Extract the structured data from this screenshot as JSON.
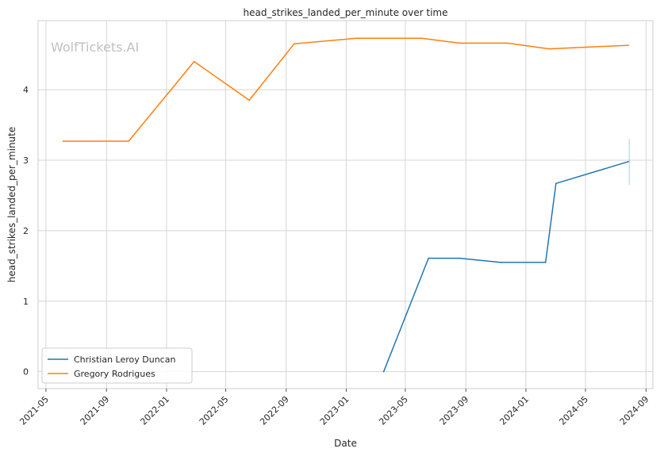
{
  "watermark": "WolfTickets.AI",
  "colors": {
    "Christian Leroy Duncan": "#1f77b4",
    "Gregory Rodrigues": "#ff7f0e",
    "grid": "#d5d5d5",
    "spine": "#cccccc"
  },
  "chart_data": {
    "type": "line",
    "title": "head_strikes_landed_per_minute over time",
    "xlabel": "Date",
    "ylabel": "head_strikes_landed_per_minute",
    "xlim": [
      "2021-04-15",
      "2024-09-15"
    ],
    "ylim": [
      -0.24,
      4.98
    ],
    "x_ticks": [
      "2021-05",
      "2021-09",
      "2022-01",
      "2022-05",
      "2022-09",
      "2023-01",
      "2023-05",
      "2023-09",
      "2024-01",
      "2024-05",
      "2024-09"
    ],
    "y_ticks": [
      0,
      1,
      2,
      3,
      4
    ],
    "grid": true,
    "legend_position": "lower-left",
    "series": [
      {
        "name": "Christian Leroy Duncan",
        "points": [
          {
            "x": "2023-03-18",
            "y": 0.0
          },
          {
            "x": "2023-06-17",
            "y": 1.61
          },
          {
            "x": "2023-08-19",
            "y": 1.61
          },
          {
            "x": "2023-11-11",
            "y": 1.55
          },
          {
            "x": "2024-02-10",
            "y": 1.55
          },
          {
            "x": "2024-03-02",
            "y": 2.67
          },
          {
            "x": "2024-07-27",
            "y": 2.98
          }
        ],
        "error_bar": {
          "x": "2024-07-29",
          "low": 2.65,
          "high": 3.3
        }
      },
      {
        "name": "Gregory Rodrigues",
        "points": [
          {
            "x": "2021-06-05",
            "y": 3.27
          },
          {
            "x": "2021-10-16",
            "y": 3.27
          },
          {
            "x": "2022-02-26",
            "y": 4.4
          },
          {
            "x": "2022-06-18",
            "y": 3.85
          },
          {
            "x": "2022-09-17",
            "y": 4.65
          },
          {
            "x": "2023-01-21",
            "y": 4.73
          },
          {
            "x": "2023-06-03",
            "y": 4.73
          },
          {
            "x": "2023-08-19",
            "y": 4.66
          },
          {
            "x": "2023-11-25",
            "y": 4.66
          },
          {
            "x": "2024-02-17",
            "y": 4.58
          },
          {
            "x": "2024-07-27",
            "y": 4.63
          }
        ]
      }
    ]
  }
}
